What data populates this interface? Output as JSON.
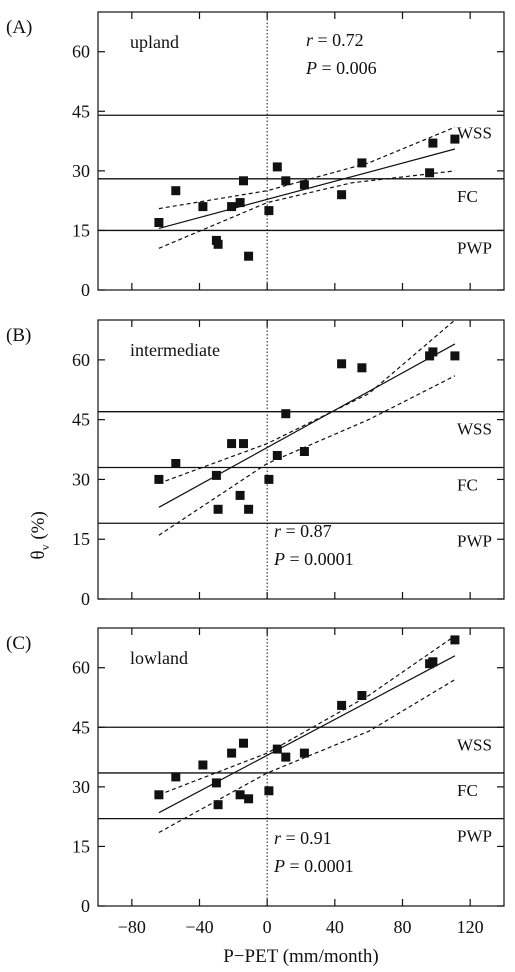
{
  "chart_data": [
    {
      "type": "scatter",
      "panel_label": "(A)",
      "site_label": "upland",
      "stats": {
        "r": "0.72",
        "P": "0.006",
        "position": "top-right"
      },
      "x": [
        -64,
        -54,
        -38,
        -30,
        -29,
        -21,
        -16,
        -14,
        -11,
        1,
        6,
        11,
        22,
        44,
        56,
        96,
        98,
        111
      ],
      "y": [
        17,
        25,
        21,
        12.5,
        11.5,
        21,
        22,
        27.5,
        8.5,
        20,
        31,
        27.5,
        26.5,
        24,
        32,
        29.5,
        37,
        38
      ],
      "reference_lines": [
        {
          "label": "WSS",
          "value": 44
        },
        {
          "label": "FC",
          "value": 28
        },
        {
          "label": "PWP",
          "value": 15
        }
      ],
      "regression": {
        "x0": -64,
        "y0": 15.5,
        "x1": 111,
        "y1": 35.5
      },
      "confidence_band": {
        "upper": [
          [
            -64,
            20.5
          ],
          [
            0,
            25
          ],
          [
            60,
            32
          ],
          [
            111,
            41
          ]
        ],
        "lower": [
          [
            -64,
            10.5
          ],
          [
            0,
            22
          ],
          [
            50,
            27
          ],
          [
            111,
            30
          ]
        ]
      },
      "ylim": [
        0,
        70
      ],
      "xlim": [
        -100,
        140
      ],
      "yticks": [
        "0",
        "15",
        "30",
        "45",
        "60"
      ]
    },
    {
      "type": "scatter",
      "panel_label": "(B)",
      "site_label": "intermediate",
      "stats": {
        "r": "0.87",
        "P": "0.0001",
        "position": "bottom-center"
      },
      "x": [
        -64,
        -54,
        -30,
        -29,
        -21,
        -16,
        -14,
        -11,
        1,
        6,
        11,
        22,
        44,
        56,
        96,
        98,
        111
      ],
      "y": [
        30,
        34,
        31,
        22.5,
        39,
        26,
        39,
        22.5,
        30,
        36,
        46.5,
        37,
        59,
        58,
        61,
        62,
        61
      ],
      "reference_lines": [
        {
          "label": "WSS",
          "value": 47
        },
        {
          "label": "FC",
          "value": 33
        },
        {
          "label": "PWP",
          "value": 19
        }
      ],
      "regression": {
        "x0": -64,
        "y0": 23,
        "x1": 111,
        "y1": 64
      },
      "confidence_band": {
        "upper": [
          [
            -64,
            29
          ],
          [
            0,
            39
          ],
          [
            60,
            51.5
          ],
          [
            111,
            70
          ]
        ],
        "lower": [
          [
            -64,
            16
          ],
          [
            0,
            34
          ],
          [
            60,
            45
          ],
          [
            111,
            56
          ]
        ]
      },
      "ylim": [
        0,
        70
      ],
      "xlim": [
        -100,
        140
      ],
      "yticks": [
        "0",
        "15",
        "30",
        "45",
        "60"
      ],
      "ylabel": "θ",
      "ylabel_sub": "v",
      "ylabel_unit": "(%)"
    },
    {
      "type": "scatter",
      "panel_label": "(C)",
      "site_label": "lowland",
      "stats": {
        "r": "0.91",
        "P": "0.0001",
        "position": "bottom-center"
      },
      "x": [
        -64,
        -54,
        -38,
        -30,
        -29,
        -21,
        -16,
        -14,
        -11,
        1,
        6,
        11,
        22,
        44,
        56,
        96,
        98,
        111
      ],
      "y": [
        28,
        32.5,
        35.5,
        31,
        25.5,
        38.5,
        28,
        41,
        27,
        29,
        39.5,
        37.5,
        38.5,
        50.5,
        53,
        61,
        61.5,
        67
      ],
      "reference_lines": [
        {
          "label": "WSS",
          "value": 45
        },
        {
          "label": "FC",
          "value": 33.5
        },
        {
          "label": "PWP",
          "value": 22
        }
      ],
      "regression": {
        "x0": -64,
        "y0": 23.5,
        "x1": 111,
        "y1": 63
      },
      "confidence_band": {
        "upper": [
          [
            -64,
            28
          ],
          [
            0,
            38.5
          ],
          [
            60,
            53
          ],
          [
            111,
            68
          ]
        ],
        "lower": [
          [
            -64,
            18.5
          ],
          [
            0,
            33.5
          ],
          [
            60,
            44
          ],
          [
            111,
            57
          ]
        ]
      },
      "ylim": [
        0,
        70
      ],
      "xlim": [
        -100,
        140
      ],
      "yticks": [
        "0",
        "15",
        "30",
        "45",
        "60"
      ],
      "xticks": [
        "−80",
        "−40",
        "0",
        "40",
        "80",
        "120"
      ],
      "xlabel": "P−PET (mm/month)"
    }
  ]
}
